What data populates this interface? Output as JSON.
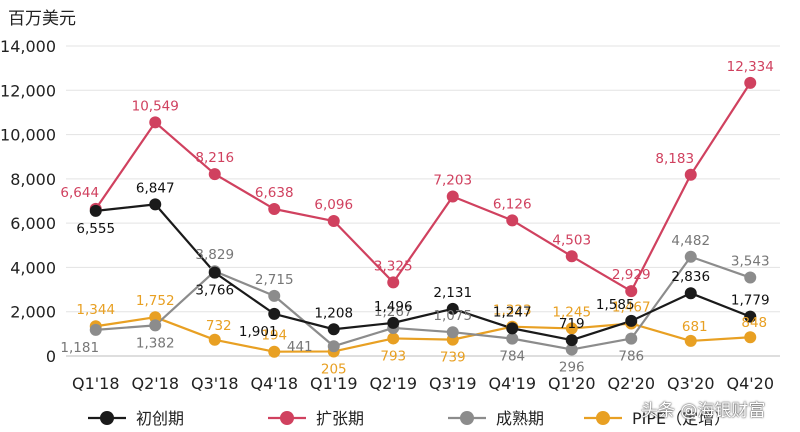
{
  "chart_data": {
    "type": "line",
    "unit_label": "百万美元",
    "categories": [
      "Q1'18",
      "Q2'18",
      "Q3'18",
      "Q4'18",
      "Q1'19",
      "Q2'19",
      "Q3'19",
      "Q4'19",
      "Q1'20",
      "Q2'20",
      "Q3'20",
      "Q4'20"
    ],
    "ylim": [
      0,
      14000
    ],
    "yticks": [
      0,
      2000,
      4000,
      6000,
      8000,
      10000,
      12000,
      14000
    ],
    "ytick_labels": [
      "0",
      "2,000",
      "4,000",
      "6,000",
      "8,000",
      "10,000",
      "12,000",
      "14,000"
    ],
    "grid": true,
    "legend_position": "bottom",
    "series": [
      {
        "name": "初创期",
        "color": "#1a1a1a",
        "values": [
          6555,
          6847,
          3766,
          1901,
          1208,
          1496,
          2131,
          1247,
          719,
          1585,
          2836,
          1779
        ],
        "labels": [
          "6,555",
          "6,847",
          "3,766",
          "1,901",
          "1,208",
          "1,496",
          "2,131",
          "1,247",
          "719",
          "1,585",
          "2,836",
          "1,779"
        ]
      },
      {
        "name": "扩张期",
        "color": "#d0415f",
        "values": [
          6644,
          10549,
          8216,
          6638,
          6096,
          3325,
          7203,
          6126,
          4503,
          2929,
          8183,
          12334
        ],
        "labels": [
          "6,644",
          "10,549",
          "8,216",
          "6,638",
          "6,096",
          "3,325",
          "7,203",
          "6,126",
          "4,503",
          "2,929",
          "8,183",
          "12,334"
        ]
      },
      {
        "name": "成熟期",
        "color": "#8c8c8c",
        "values": [
          1181,
          1382,
          3829,
          2715,
          441,
          1267,
          1075,
          784,
          296,
          786,
          4482,
          3543
        ],
        "labels": [
          "1,181",
          "1,382",
          "3,829",
          "2,715",
          "441",
          "1,267",
          "1,075",
          "784",
          "296",
          "786",
          "4,482",
          "3,543"
        ]
      },
      {
        "name": "PIPE（定增）",
        "color": "#e8a023",
        "values": [
          1344,
          1752,
          732,
          194,
          205,
          793,
          739,
          1323,
          1245,
          1467,
          681,
          848
        ],
        "labels": [
          "1,344",
          "1,752",
          "732",
          "194",
          "205",
          "793",
          "739",
          "1,323",
          "1,245",
          "1,467",
          "681",
          "848"
        ]
      }
    ]
  },
  "watermark": "头条 @海银财富"
}
